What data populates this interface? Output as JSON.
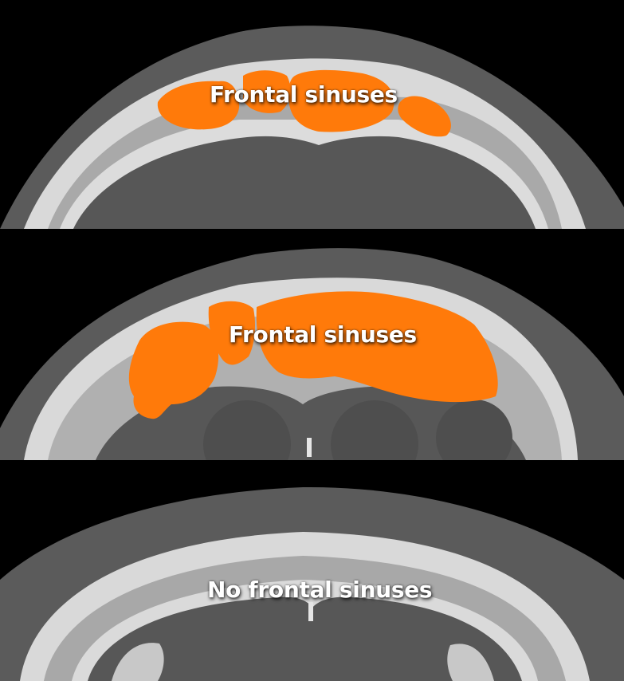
{
  "panels": [
    {
      "label": "Frontal sinuses"
    },
    {
      "label": "Frontal sinuses"
    },
    {
      "label": "No frontal sinuses"
    }
  ],
  "colors": {
    "background": "#000000",
    "scalp": "#5b5b5b",
    "bone": "#d9d9d9",
    "brain": "#575757",
    "sinus_highlight": "#ff7a0a"
  }
}
